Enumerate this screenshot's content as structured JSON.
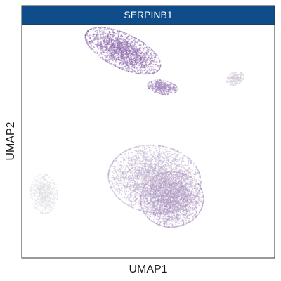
{
  "chart_data": {
    "type": "scatter",
    "title": "SERPINB1",
    "xlabel": "UMAP1",
    "ylabel": "UMAP2",
    "grid": false,
    "legend": "none",
    "colors": {
      "strip_fill": "#0f4c8a",
      "low_expression": "#e3e1e6",
      "high_expression": "#7a4fa1",
      "panel_border": "#333333"
    },
    "clusters": [
      {
        "name": "upper-left elongated cluster",
        "cx": -1.6,
        "cy": 6.2,
        "rx": 2.5,
        "ry": 1.1,
        "angle": -28,
        "n": 2400,
        "expression": 0.85
      },
      {
        "name": "upper-middle small cluster",
        "cx": 0.9,
        "cy": 3.7,
        "rx": 0.9,
        "ry": 0.45,
        "angle": -10,
        "n": 550,
        "expression": 0.7
      },
      {
        "name": "upper-right small cluster",
        "cx": 5.5,
        "cy": 4.3,
        "rx": 0.55,
        "ry": 0.4,
        "angle": 25,
        "n": 260,
        "expression": 0.18
      },
      {
        "name": "lower-center large cluster",
        "cx": 0.4,
        "cy": -2.6,
        "rx": 2.8,
        "ry": 2.2,
        "angle": -10,
        "n": 3600,
        "expression": 0.38
      },
      {
        "name": "lower-right dense lobe",
        "cx": 1.5,
        "cy": -4.0,
        "rx": 1.9,
        "ry": 1.8,
        "angle": 10,
        "n": 2600,
        "expression": 0.55
      },
      {
        "name": "left isolated cluster",
        "cx": -6.6,
        "cy": -3.6,
        "rx": 0.8,
        "ry": 1.3,
        "angle": 5,
        "n": 650,
        "expression": 0.04
      }
    ],
    "xlim": [
      -8,
      8
    ],
    "ylim": [
      -8,
      8
    ]
  }
}
